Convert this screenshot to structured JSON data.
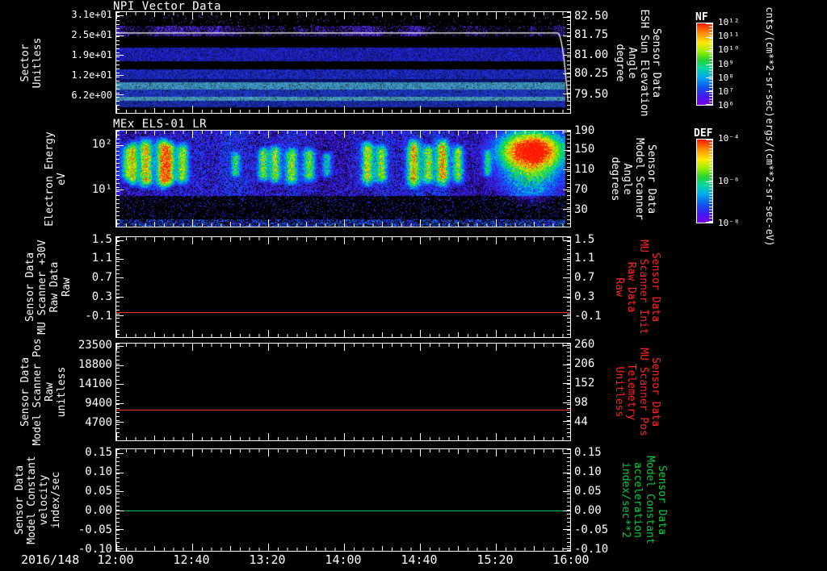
{
  "chart_data": {
    "type": "heatmap",
    "description": "Five stacked time-series panels: two spectrograms and three flat line plots",
    "x_axis": {
      "date_label": "2016/148",
      "tick_labels": [
        "12:00",
        "12:40",
        "13:20",
        "14:00",
        "14:40",
        "15:20",
        "16:00"
      ]
    },
    "panels": [
      {
        "id": "npi-vector-data",
        "kind": "spectrogram",
        "title": "NPI Vector Data",
        "left_axis": {
          "label_lines": [
            "Sector",
            "Unitless"
          ],
          "color": "#ffffff",
          "sci": true,
          "ticks": [
            {
              "text": "3.1e+01",
              "f": 0.031
            },
            {
              "text": "2.5e+01",
              "f": 0.228
            },
            {
              "text": "1.9e+01",
              "f": 0.425
            },
            {
              "text": "1.2e+01",
              "f": 0.622
            },
            {
              "text": "6.2e+00",
              "f": 0.819
            }
          ]
        },
        "right_axis": {
          "label_lines": [
            "Sensor Data",
            "ESH Sun Elevation",
            "Angle",
            "degree"
          ],
          "color": "#ffffff",
          "ticks": [
            {
              "text": "82.50",
              "f": 0.047
            },
            {
              "text": "81.75",
              "f": 0.228
            },
            {
              "text": "81.00",
              "f": 0.425
            },
            {
              "text": "80.25",
              "f": 0.606
            },
            {
              "text": "79.50",
              "f": 0.811
            }
          ]
        },
        "colorbar": {
          "name": "NF",
          "unit": "cnts/(cm**2-sr-sec)",
          "ticks": [
            "10¹²",
            "10¹¹",
            "10¹⁰",
            "10⁹",
            "10⁸",
            "10⁷",
            "10⁶"
          ]
        },
        "bands": [
          {
            "y0": 0.03,
            "y1": 0.14,
            "color": "#7a3af0",
            "dots": true,
            "density": 0.03,
            "mod": true
          },
          {
            "y0": 0.14,
            "y1": 0.245,
            "color": "#4a26d8",
            "gap": 0.18,
            "noise": 0.6,
            "mod": true
          },
          {
            "y0": 0.355,
            "y1": 0.495,
            "color": "#2227dd",
            "gap": 0.03,
            "noise": 0.45
          },
          {
            "y0": 0.575,
            "y1": 0.665,
            "color": "#2130e0",
            "gap": 0.03,
            "noise": 0.45
          },
          {
            "y0": 0.665,
            "y1": 0.7,
            "color": "#101a8c",
            "gap": 0.04,
            "noise": 0.4
          },
          {
            "y0": 0.7,
            "y1": 0.775,
            "color": "#4fbdf5",
            "gap": 0.02,
            "noise": 0.3
          },
          {
            "y0": 0.775,
            "y1": 0.845,
            "color": "#2342e6",
            "gap": 0.03,
            "noise": 0.4
          },
          {
            "y0": 0.845,
            "y1": 0.885,
            "color": "#5ecdf8",
            "gap": 0.02,
            "noise": 0.25
          },
          {
            "y0": 0.885,
            "y1": 0.95,
            "color": "#2136d2",
            "gap": 0.03,
            "noise": 0.4
          }
        ],
        "overlay_line": {
          "color": "#ffffff",
          "flat_f": 0.207,
          "drop_start_f": 0.972,
          "drop_depth_f": 0.88
        }
      },
      {
        "id": "mex-els-01-lr",
        "kind": "spectrogram",
        "title": "MEx ELS-01 LR",
        "left_axis": {
          "label_lines": [
            "Electron Energy",
            "eV"
          ],
          "color": "#ffffff",
          "ticks": [
            {
              "text": "10²",
              "f": 0.149
            },
            {
              "text": "10¹",
              "f": 0.612
            }
          ]
        },
        "right_axis": {
          "label_lines": [
            "Sensor Data",
            "Model Scanner",
            "Angle",
            "degrees"
          ],
          "color": "#ffffff",
          "ticks": [
            {
              "text": "190",
              "f": 0.012
            },
            {
              "text": "150",
              "f": 0.198
            },
            {
              "text": "110",
              "f": 0.405
            },
            {
              "text": "70",
              "f": 0.612
            },
            {
              "text": "30",
              "f": 0.818
            }
          ]
        },
        "colorbar": {
          "name": "DEF",
          "unit": "ergs/(cm**2-sr-sec-eV)",
          "ticks": [
            "10⁻⁴",
            "10⁻⁶",
            "10⁻⁸"
          ]
        },
        "plumes": [
          [
            0.022,
            0.008,
            0.55,
            0.12,
            0.55
          ],
          [
            0.036,
            0.007,
            0.78,
            0.08,
            0.6
          ],
          [
            0.064,
            0.01,
            0.92,
            0.05,
            0.62
          ],
          [
            0.101,
            0.009,
            0.95,
            0.05,
            0.63
          ],
          [
            0.116,
            0.008,
            0.85,
            0.08,
            0.6
          ],
          [
            0.145,
            0.009,
            0.72,
            0.1,
            0.58
          ],
          [
            0.262,
            0.006,
            0.5,
            0.2,
            0.5
          ],
          [
            0.323,
            0.008,
            0.65,
            0.15,
            0.55
          ],
          [
            0.349,
            0.008,
            0.7,
            0.12,
            0.57
          ],
          [
            0.385,
            0.009,
            0.66,
            0.15,
            0.58
          ],
          [
            0.424,
            0.009,
            0.6,
            0.15,
            0.55
          ],
          [
            0.463,
            0.007,
            0.45,
            0.2,
            0.5
          ],
          [
            0.553,
            0.009,
            0.8,
            0.08,
            0.6
          ],
          [
            0.583,
            0.008,
            0.66,
            0.12,
            0.57
          ],
          [
            0.654,
            0.009,
            0.9,
            0.06,
            0.62
          ],
          [
            0.686,
            0.008,
            0.72,
            0.12,
            0.58
          ],
          [
            0.718,
            0.009,
            0.92,
            0.06,
            0.6
          ],
          [
            0.752,
            0.008,
            0.7,
            0.12,
            0.57
          ],
          [
            0.817,
            0.006,
            0.45,
            0.18,
            0.5
          ]
        ],
        "blob": {
          "x": 0.915,
          "w": 0.045,
          "i": 1.0
        }
      },
      {
        "id": "mu-scanner-30v",
        "kind": "line",
        "left_axis": {
          "label_lines": [
            "Sensor Data",
            "MU Scanner +30V",
            "Raw Data",
            "Raw"
          ],
          "color": "#ffffff",
          "ticks": [
            {
              "text": "1.5",
              "f": 0.032
            },
            {
              "text": "1.1",
              "f": 0.214
            },
            {
              "text": "0.7",
              "f": 0.405
            },
            {
              "text": "0.3",
              "f": 0.595
            },
            {
              "text": "-0.1",
              "f": 0.786
            }
          ]
        },
        "right_axis": {
          "label_lines": [
            "Sensor Data",
            "MU Scanner Init",
            "Raw Data",
            "Raw"
          ],
          "color": "#ff2222",
          "ticks": [
            {
              "text": "1.5",
              "f": 0.032
            },
            {
              "text": "1.1",
              "f": 0.214
            },
            {
              "text": "0.7",
              "f": 0.405
            },
            {
              "text": "0.3",
              "f": 0.595
            },
            {
              "text": "-0.1",
              "f": 0.786
            }
          ]
        },
        "series": {
          "color": "#ff2222",
          "value": 0.0,
          "f": 0.746
        }
      },
      {
        "id": "model-scanner-pos",
        "kind": "line",
        "left_axis": {
          "label_lines": [
            "Sensor Data",
            "Model Scanner Pos",
            "Raw",
            "unitless"
          ],
          "color": "#ffffff",
          "ticks": [
            {
              "text": "23500",
              "f": 0.025
            },
            {
              "text": "18800",
              "f": 0.221
            },
            {
              "text": "14100",
              "f": 0.418
            },
            {
              "text": "9400",
              "f": 0.615
            },
            {
              "text": "4700",
              "f": 0.811
            }
          ]
        },
        "right_axis": {
          "label_lines": [
            "Sensor Data",
            "MU Scanner Pos",
            "Telemetry",
            "Unitless"
          ],
          "color": "#ff2222",
          "ticks": [
            {
              "text": "260",
              "f": 0.016
            },
            {
              "text": "206",
              "f": 0.213
            },
            {
              "text": "152",
              "f": 0.41
            },
            {
              "text": "98",
              "f": 0.607
            },
            {
              "text": "44",
              "f": 0.803
            }
          ]
        },
        "series": {
          "color": "#ff2222",
          "value": 7800,
          "f": 0.68
        }
      },
      {
        "id": "model-constant-velocity",
        "kind": "line",
        "left_axis": {
          "label_lines": [
            "Sensor Data",
            "Model Constant",
            "velocity",
            "index/sec"
          ],
          "color": "#ffffff",
          "ticks": [
            {
              "text": "0.15",
              "f": 0.039
            },
            {
              "text": "0.10",
              "f": 0.227
            },
            {
              "text": "0.05",
              "f": 0.414
            },
            {
              "text": "0.00",
              "f": 0.602
            },
            {
              "text": "-0.05",
              "f": 0.789
            },
            {
              "text": "-0.10",
              "f": 0.977
            }
          ]
        },
        "right_axis": {
          "label_lines": [
            "Sensor Data",
            "Model Constant",
            "acceleration",
            "index/sec**2"
          ],
          "color": "#00cc44",
          "ticks": [
            {
              "text": "0.15",
              "f": 0.039
            },
            {
              "text": "0.10",
              "f": 0.227
            },
            {
              "text": "0.05",
              "f": 0.414
            },
            {
              "text": "0.00",
              "f": 0.602
            },
            {
              "text": "-0.05",
              "f": 0.789
            },
            {
              "text": "-0.10",
              "f": 0.977
            }
          ]
        },
        "series": {
          "color": "#00cc44",
          "value": 0.0,
          "f": 0.602
        }
      }
    ]
  }
}
